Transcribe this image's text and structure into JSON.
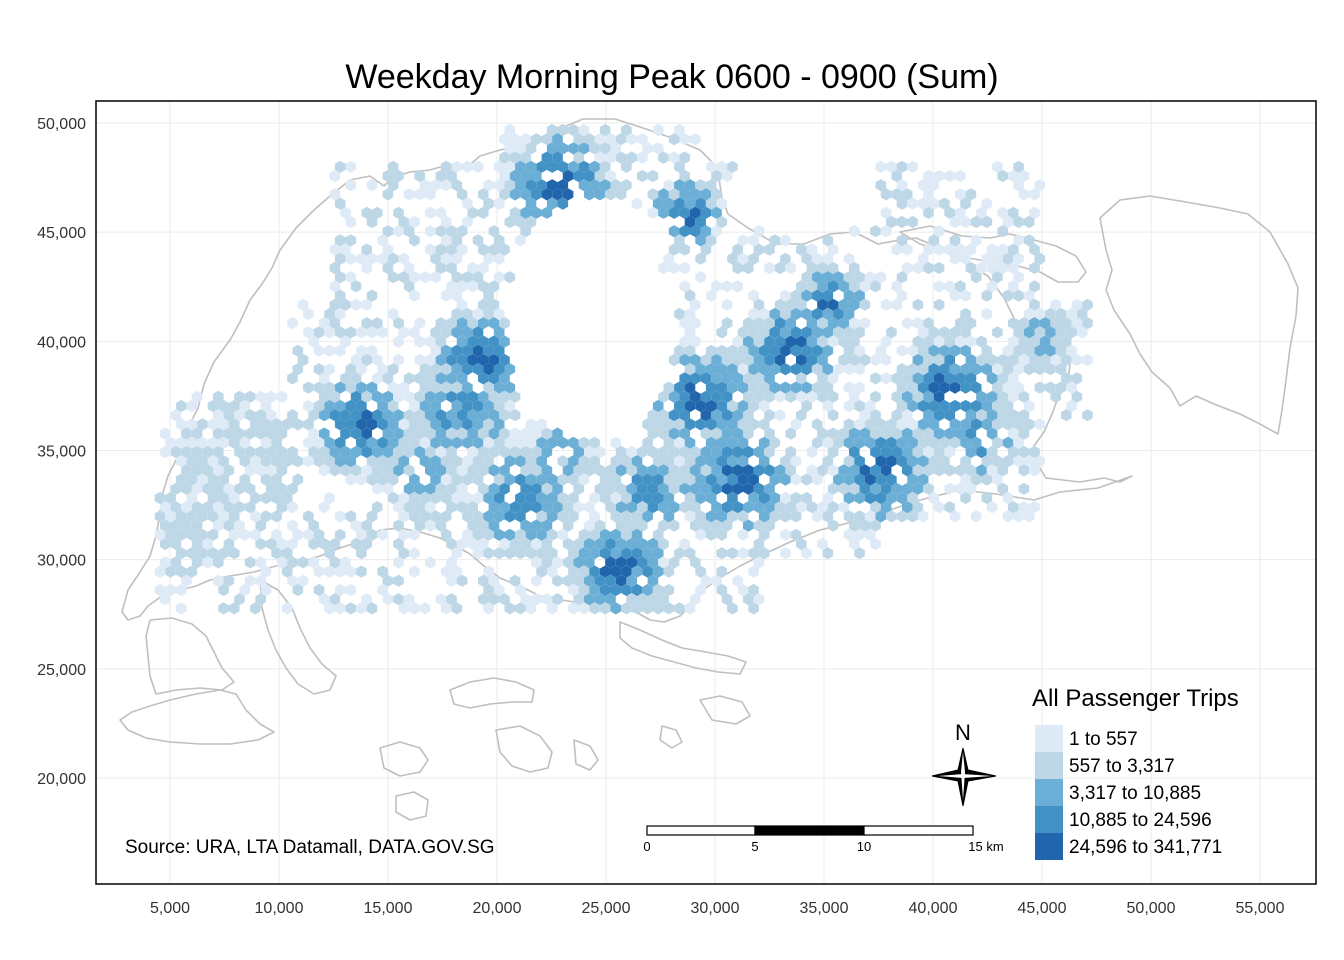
{
  "title": "Weekday Morning Peak 0600 - 0900 (Sum)",
  "axes": {
    "x_ticks": [
      "5,000",
      "10,000",
      "15,000",
      "20,000",
      "25,000",
      "30,000",
      "35,000",
      "40,000",
      "45,000",
      "50,000",
      "55,000"
    ],
    "y_ticks": [
      "50,000",
      "45,000",
      "40,000",
      "35,000",
      "30,000",
      "25,000",
      "20,000"
    ],
    "x_values": [
      5000,
      10000,
      15000,
      20000,
      25000,
      30000,
      35000,
      40000,
      45000,
      50000,
      55000
    ],
    "y_values": [
      50000,
      45000,
      40000,
      35000,
      30000,
      25000,
      20000
    ],
    "grid": true
  },
  "legend": {
    "title": "All Passenger Trips",
    "placement": "bottom-right",
    "items": [
      {
        "label": "1 to 557",
        "color": "#deebf7"
      },
      {
        "label": "557 to 3,317",
        "color": "#bdd7e7"
      },
      {
        "label": "3,317 to 10,885",
        "color": "#6baed6"
      },
      {
        "label": "10,885 to 24,596",
        "color": "#4292c6"
      },
      {
        "label": "24,596 to 341,771",
        "color": "#2166ac"
      }
    ]
  },
  "source": "Source: URA, LTA Datamall, DATA.GOV.SG",
  "scale_bar": {
    "labels": [
      "0",
      "5",
      "10",
      "15 km"
    ]
  },
  "north_arrow": {
    "label": "N"
  },
  "colors": {
    "outline": "#bfbfbf",
    "grid": "#ebebeb",
    "frame": "#000000"
  }
}
